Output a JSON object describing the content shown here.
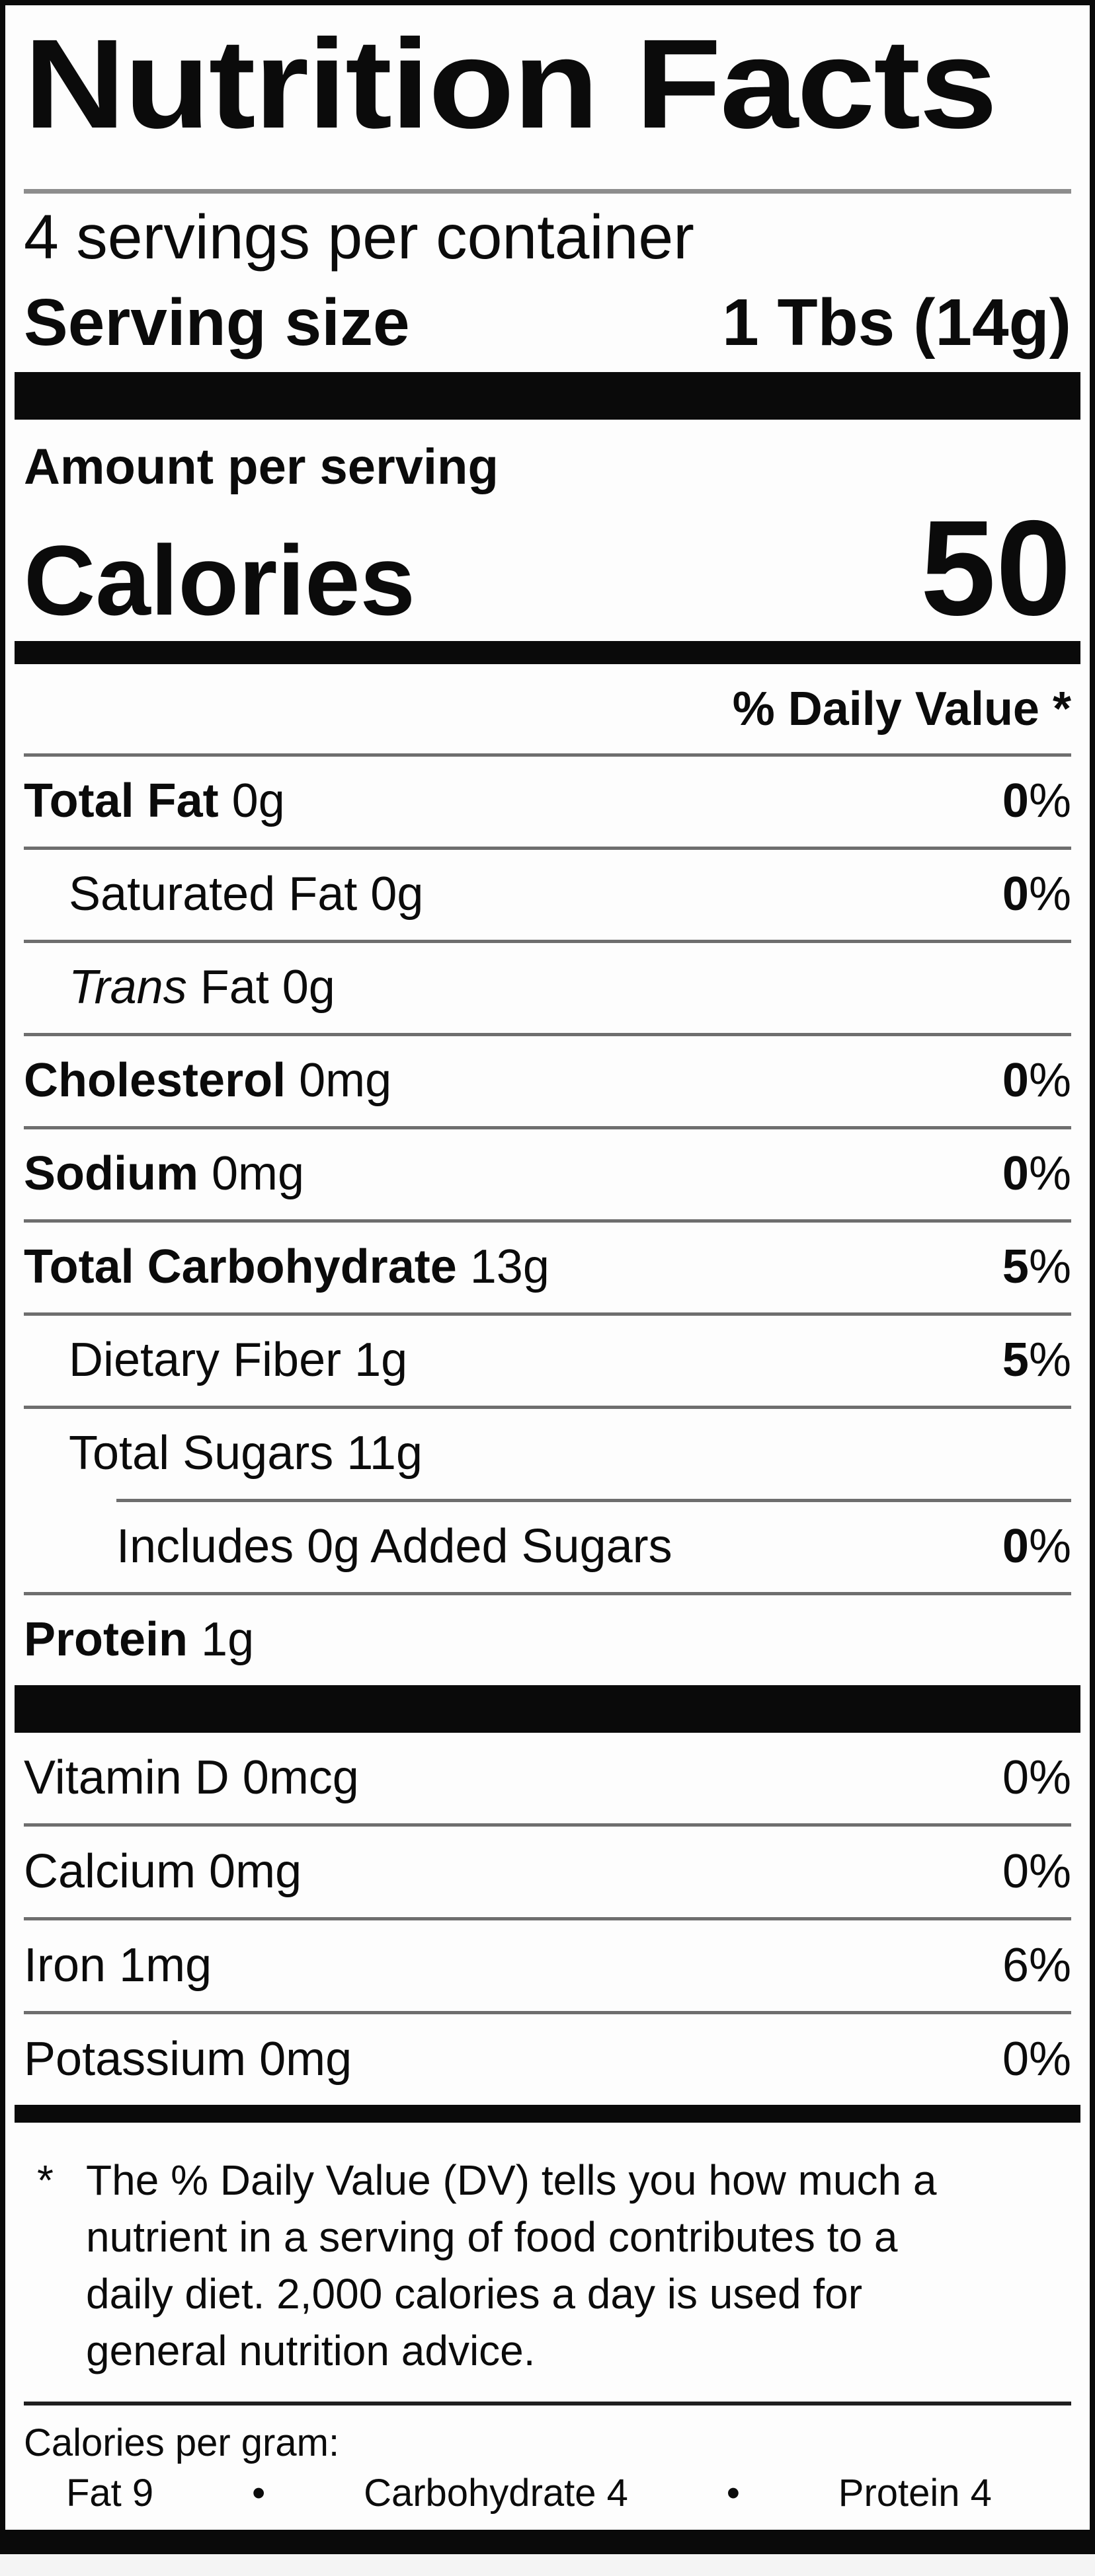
{
  "label": {
    "title": "Nutrition Facts",
    "servings_per_container": "4 servings per container",
    "serving_size": {
      "label": "Serving size",
      "value": "1 Tbs (14g)"
    },
    "amount_per_serving": "Amount per serving",
    "calories": {
      "label": "Calories",
      "value": "50"
    },
    "daily_value_header": "% Daily Value *",
    "nutrients": [
      {
        "name": "Total Fat",
        "amount": "0g",
        "percent": "0%",
        "name_bold": true,
        "percent_bold": true,
        "indent": 0
      },
      {
        "name": "Saturated Fat",
        "amount": "0g",
        "percent": "0%",
        "name_bold": false,
        "percent_bold": true,
        "indent": 1
      },
      {
        "name": "Trans",
        "name_italic": true,
        "amount": "Fat 0g",
        "percent": null,
        "name_bold": false,
        "indent": 1
      },
      {
        "name": "Cholesterol",
        "amount": "0mg",
        "percent": "0%",
        "name_bold": true,
        "percent_bold": true,
        "indent": 0
      },
      {
        "name": "Sodium",
        "amount": "0mg",
        "percent": "0%",
        "name_bold": true,
        "percent_bold": true,
        "indent": 0
      },
      {
        "name": "Total Carbohydrate",
        "amount": "13g",
        "percent": "5%",
        "name_bold": true,
        "percent_bold": true,
        "indent": 0
      },
      {
        "name": "Dietary Fiber",
        "amount": "1g",
        "percent": "5%",
        "name_bold": false,
        "percent_bold": true,
        "indent": 1
      },
      {
        "name": "Total Sugars",
        "amount": "11g",
        "percent": null,
        "name_bold": false,
        "indent": 1
      },
      {
        "name": "Includes 0g Added Sugars",
        "amount": "",
        "percent": "0%",
        "name_bold": false,
        "percent_bold": true,
        "indent": 2,
        "divider_indent": true
      },
      {
        "name": "Protein",
        "amount": "1g",
        "percent": null,
        "name_bold": true,
        "indent": 0
      }
    ],
    "micronutrients": [
      {
        "name": "Vitamin D",
        "amount": "0mcg",
        "percent": "0%"
      },
      {
        "name": "Calcium",
        "amount": "0mg",
        "percent": "0%"
      },
      {
        "name": "Iron",
        "amount": "1mg",
        "percent": "6%"
      },
      {
        "name": "Potassium",
        "amount": "0mg",
        "percent": "0%"
      }
    ],
    "footnote": {
      "marker": "*",
      "lines": [
        "The % Daily Value (DV) tells you how much a",
        "nutrient in a serving of food contributes to a",
        "daily diet. 2,000 calories a day is used for",
        "general nutrition advice."
      ]
    },
    "calories_per_gram": {
      "label": "Calories per gram:",
      "items": [
        "Fat 9",
        "Carbohydrate 4",
        "Protein 4"
      ],
      "separator": "•"
    },
    "colors": {
      "bar": "#0a0a0a",
      "hairline": "#6e6e6e",
      "title_rule": "#8d8d8d",
      "footnote_rule": "#1f1f1f",
      "label_background": "#fdfdfd",
      "page_background": "#f4f4f4"
    }
  }
}
